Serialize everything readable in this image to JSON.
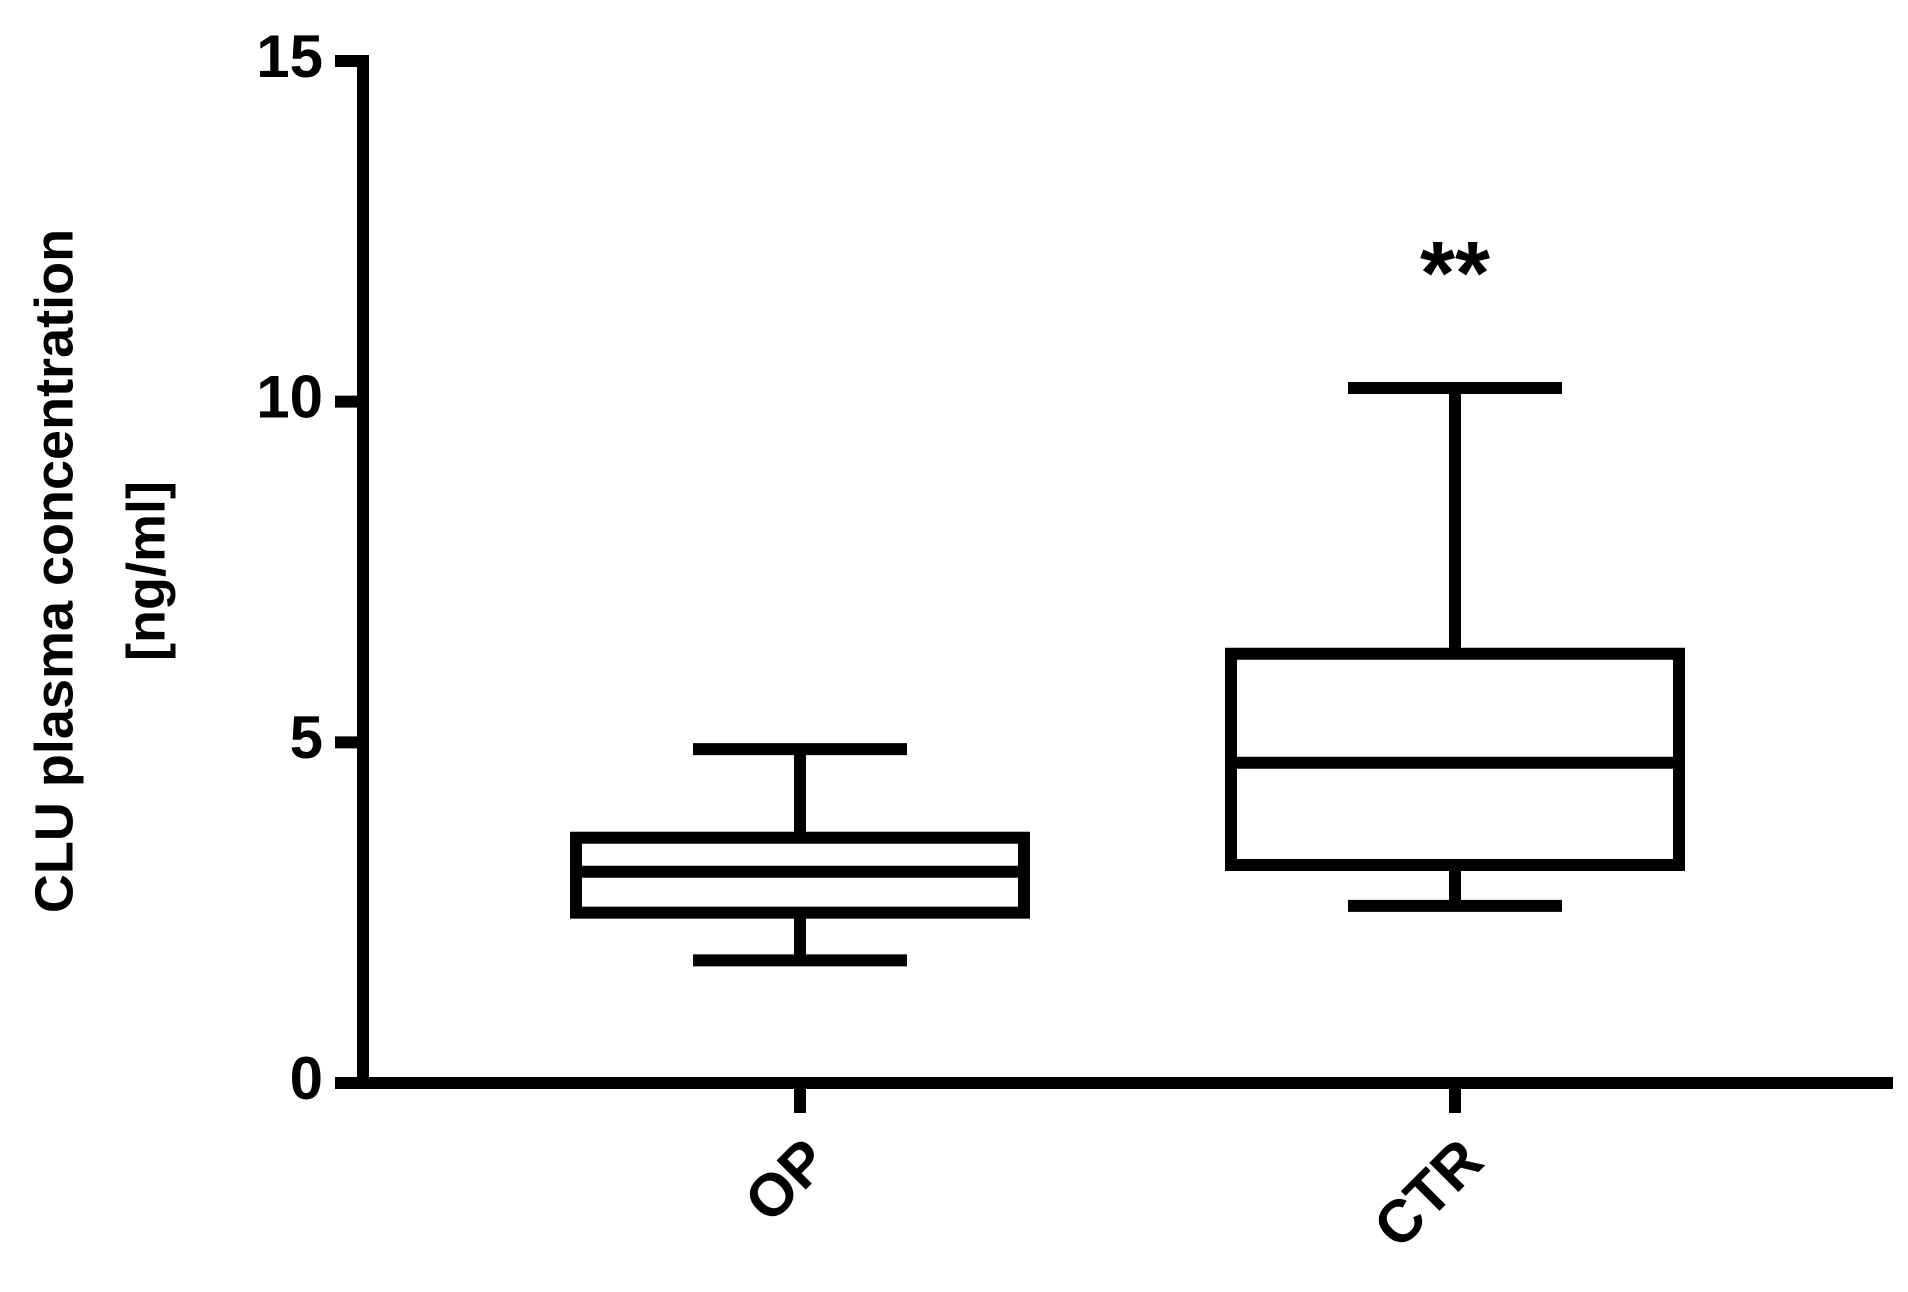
{
  "chart_data": {
    "type": "box",
    "ylabel": [
      "CLU plasma concentration",
      "[ng/ml]"
    ],
    "categories": [
      "OP",
      "CTR"
    ],
    "boxes": [
      {
        "min": 1.8,
        "q1": 2.5,
        "median": 3.1,
        "q3": 3.6,
        "max": 4.9
      },
      {
        "min": 2.6,
        "q1": 3.2,
        "median": 4.7,
        "q3": 6.3,
        "max": 10.2
      }
    ],
    "annotations": [
      {
        "category": 1,
        "text": "**"
      }
    ],
    "color": "#000000",
    "ylim": [
      0,
      15
    ],
    "yticks": [
      0,
      5,
      10,
      15
    ]
  }
}
